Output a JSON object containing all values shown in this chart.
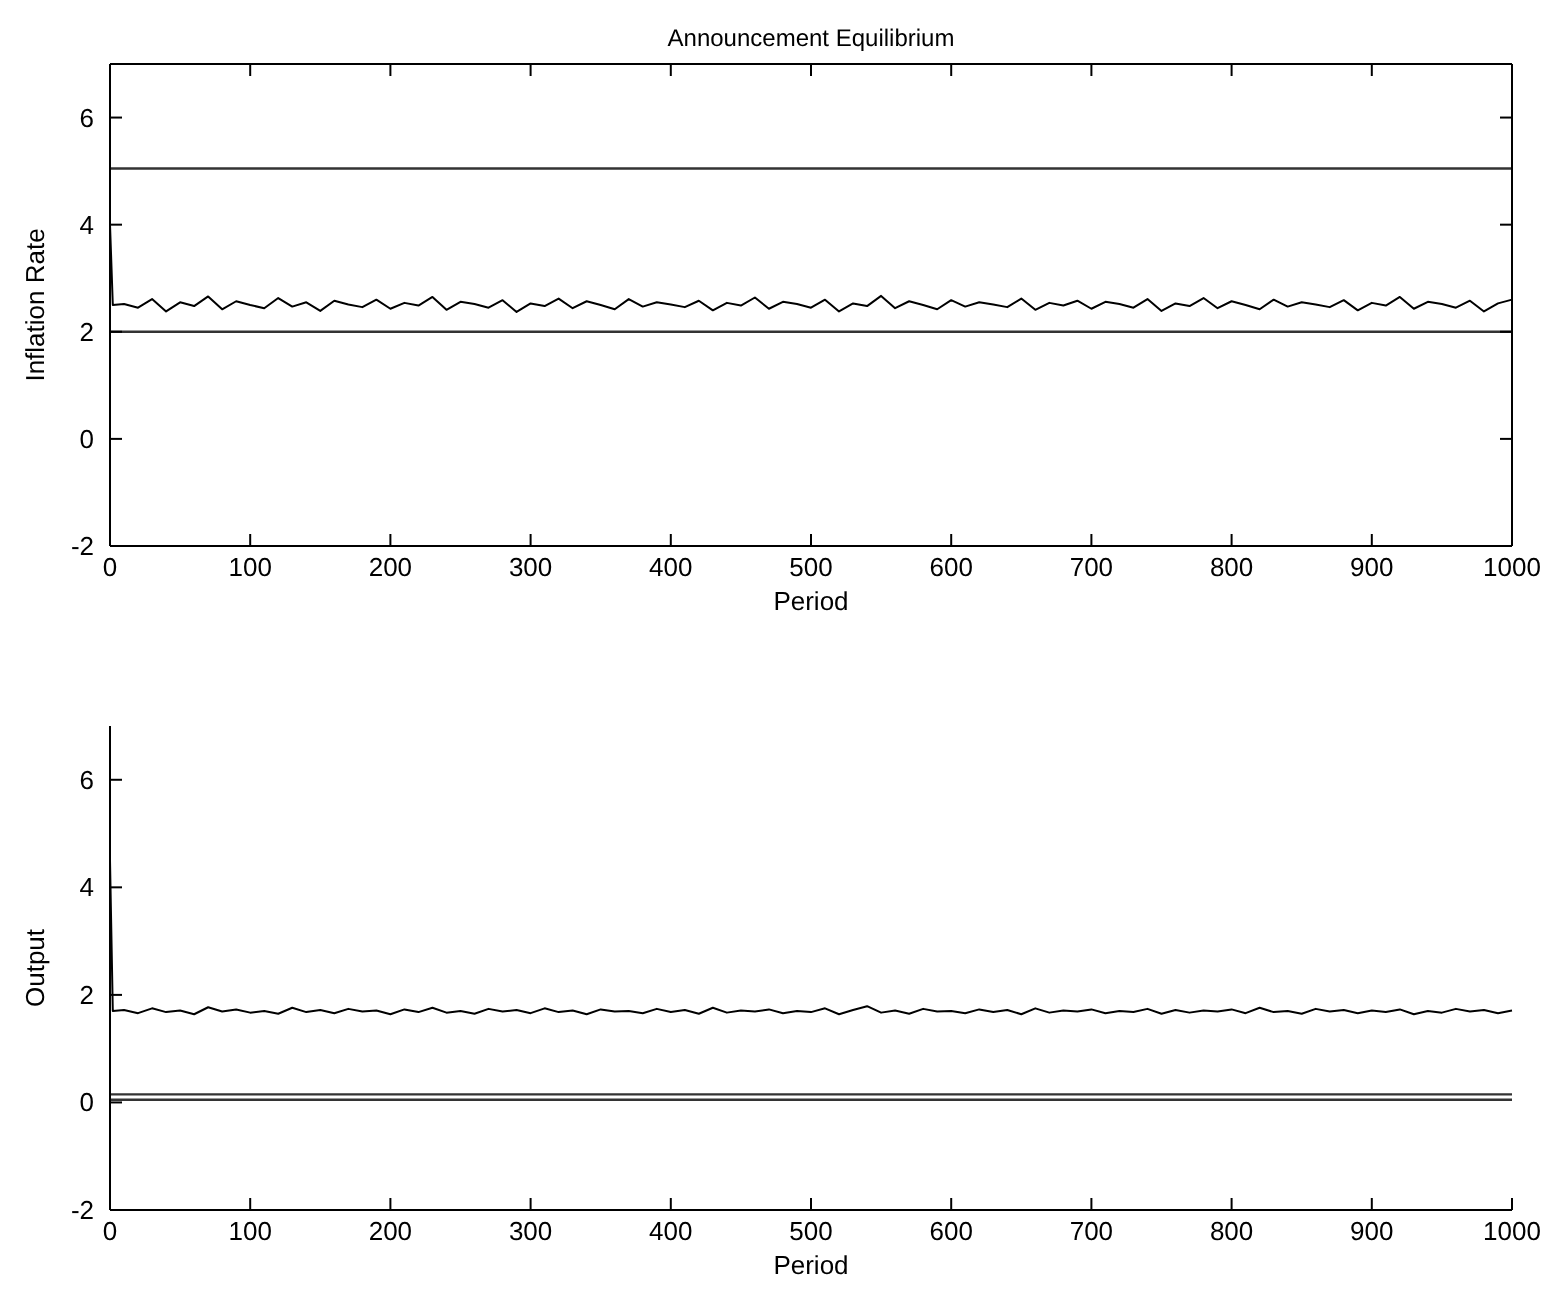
{
  "chart_data": [
    {
      "type": "line",
      "title": "Announcement Equilibrium",
      "xlabel": "Period",
      "ylabel": "Inflation Rate",
      "xlim": [
        0,
        1000
      ],
      "ylim": [
        -2,
        7
      ],
      "xticks": [
        0,
        100,
        200,
        300,
        400,
        500,
        600,
        700,
        800,
        900,
        1000
      ],
      "yticks": [
        -2,
        0,
        2,
        4,
        6
      ],
      "x": [
        0,
        2,
        10,
        20,
        30,
        40,
        50,
        60,
        70,
        80,
        90,
        100,
        110,
        120,
        130,
        140,
        150,
        160,
        170,
        180,
        190,
        200,
        210,
        220,
        230,
        240,
        250,
        260,
        270,
        280,
        290,
        300,
        310,
        320,
        330,
        340,
        350,
        360,
        370,
        380,
        390,
        400,
        410,
        420,
        430,
        440,
        450,
        460,
        470,
        480,
        490,
        500,
        510,
        520,
        530,
        540,
        550,
        560,
        570,
        580,
        590,
        600,
        610,
        620,
        630,
        640,
        650,
        660,
        670,
        680,
        690,
        700,
        710,
        720,
        730,
        740,
        750,
        760,
        770,
        780,
        790,
        800,
        810,
        820,
        830,
        840,
        850,
        860,
        870,
        880,
        890,
        900,
        910,
        920,
        930,
        940,
        950,
        960,
        970,
        980,
        990,
        1000
      ],
      "series": [
        {
          "color": "#000000",
          "values": [
            4.0,
            2.5,
            2.52,
            2.45,
            2.61,
            2.38,
            2.55,
            2.48,
            2.66,
            2.42,
            2.57,
            2.5,
            2.44,
            2.63,
            2.47,
            2.55,
            2.39,
            2.58,
            2.51,
            2.46,
            2.6,
            2.43,
            2.54,
            2.49,
            2.65,
            2.41,
            2.56,
            2.52,
            2.45,
            2.59,
            2.37,
            2.53,
            2.48,
            2.62,
            2.44,
            2.57,
            2.5,
            2.42,
            2.61,
            2.47,
            2.55,
            2.51,
            2.46,
            2.58,
            2.4,
            2.54,
            2.49,
            2.64,
            2.43,
            2.56,
            2.52,
            2.45,
            2.6,
            2.38,
            2.53,
            2.48,
            2.67,
            2.44,
            2.57,
            2.5,
            2.42,
            2.59,
            2.47,
            2.55,
            2.51,
            2.46,
            2.62,
            2.41,
            2.54,
            2.49,
            2.58,
            2.43,
            2.56,
            2.52,
            2.45,
            2.61,
            2.39,
            2.53,
            2.48,
            2.63,
            2.44,
            2.57,
            2.5,
            2.42,
            2.6,
            2.47,
            2.55,
            2.51,
            2.46,
            2.59,
            2.4,
            2.54,
            2.49,
            2.65,
            2.43,
            2.56,
            2.52,
            2.45,
            2.58,
            2.38,
            2.53,
            2.6
          ]
        }
      ],
      "ref_lines": [
        {
          "axis": "y",
          "value": 5.05,
          "color": "#333333"
        },
        {
          "axis": "y",
          "value": 2.0,
          "color": "#333333"
        }
      ]
    },
    {
      "type": "line",
      "xlabel": "Period",
      "ylabel": "Output",
      "xlim": [
        0,
        1000
      ],
      "ylim": [
        -2,
        7
      ],
      "xticks": [
        0,
        100,
        200,
        300,
        400,
        500,
        600,
        700,
        800,
        900,
        1000
      ],
      "yticks": [
        -2,
        0,
        2,
        4,
        6
      ],
      "x": [
        0,
        2,
        10,
        20,
        30,
        40,
        50,
        60,
        70,
        80,
        90,
        100,
        110,
        120,
        130,
        140,
        150,
        160,
        170,
        180,
        190,
        200,
        210,
        220,
        230,
        240,
        250,
        260,
        270,
        280,
        290,
        300,
        310,
        320,
        330,
        340,
        350,
        360,
        370,
        380,
        390,
        400,
        410,
        420,
        430,
        440,
        450,
        460,
        470,
        480,
        490,
        500,
        510,
        520,
        530,
        540,
        550,
        560,
        570,
        580,
        590,
        600,
        610,
        620,
        630,
        640,
        650,
        660,
        670,
        680,
        690,
        700,
        710,
        720,
        730,
        740,
        750,
        760,
        770,
        780,
        790,
        800,
        810,
        820,
        830,
        840,
        850,
        860,
        870,
        880,
        890,
        900,
        910,
        920,
        930,
        940,
        950,
        960,
        970,
        980,
        990,
        1000
      ],
      "series": [
        {
          "color": "#000000",
          "values": [
            4.5,
            1.7,
            1.72,
            1.66,
            1.75,
            1.68,
            1.71,
            1.64,
            1.77,
            1.69,
            1.73,
            1.67,
            1.7,
            1.65,
            1.76,
            1.68,
            1.72,
            1.66,
            1.74,
            1.69,
            1.71,
            1.64,
            1.73,
            1.68,
            1.76,
            1.67,
            1.7,
            1.65,
            1.74,
            1.69,
            1.72,
            1.66,
            1.75,
            1.68,
            1.71,
            1.64,
            1.73,
            1.69,
            1.7,
            1.66,
            1.74,
            1.68,
            1.72,
            1.65,
            1.76,
            1.67,
            1.71,
            1.69,
            1.73,
            1.66,
            1.7,
            1.68,
            1.75,
            1.64,
            1.72,
            1.79,
            1.67,
            1.71,
            1.65,
            1.74,
            1.69,
            1.7,
            1.66,
            1.73,
            1.68,
            1.72,
            1.64,
            1.75,
            1.67,
            1.71,
            1.69,
            1.73,
            1.66,
            1.7,
            1.68,
            1.74,
            1.65,
            1.72,
            1.67,
            1.71,
            1.69,
            1.73,
            1.66,
            1.76,
            1.68,
            1.7,
            1.65,
            1.74,
            1.69,
            1.72,
            1.66,
            1.71,
            1.68,
            1.73,
            1.64,
            1.7,
            1.67,
            1.74,
            1.69,
            1.72,
            1.66,
            1.71
          ]
        }
      ],
      "ref_lines": [
        {
          "axis": "y",
          "value": 0.15,
          "color": "#333333"
        },
        {
          "axis": "y",
          "value": 0.05,
          "color": "#333333"
        }
      ]
    }
  ]
}
